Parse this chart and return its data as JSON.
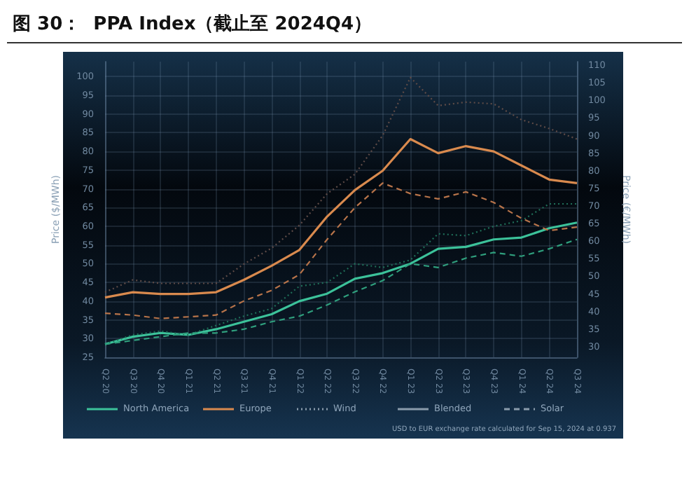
{
  "chart_data": {
    "type": "line",
    "title": "图 30：  PPA Index（截止至 2024Q4）",
    "ylabel": "Price ($/MWh)",
    "y2label": "Price (€/MWh)",
    "categories": [
      "Q2 20",
      "Q3 20",
      "Q4 20",
      "Q1 21",
      "Q2 21",
      "Q3 21",
      "Q4 21",
      "Q1 22",
      "Q2 22",
      "Q3 22",
      "Q4 22",
      "Q1 23",
      "Q2 23",
      "Q3 23",
      "Q4 23",
      "Q1 24",
      "Q2 24",
      "Q3 24"
    ],
    "series": [
      {
        "color": "#3cc29a",
        "line_style": "solid",
        "values": [
          28.5,
          30.5,
          31.5,
          31,
          32.5,
          34.5,
          36.5,
          40,
          42,
          46,
          47.5,
          50,
          54,
          54.5,
          56.5,
          57,
          59.5,
          61
        ]
      },
      {
        "color": "#1f6e58",
        "line_style": "dotted",
        "values": [
          28.5,
          31,
          32,
          31,
          33.5,
          36,
          38,
          44,
          45,
          50,
          49,
          51,
          58,
          57.5,
          60,
          61.5,
          66,
          66
        ]
      },
      {
        "color": "#2f9f7d",
        "line_style": "dashed",
        "values": [
          28.5,
          29.5,
          30.5,
          31.5,
          31.5,
          32.5,
          34.5,
          36,
          39,
          42.5,
          45.5,
          50,
          49,
          51.5,
          53,
          52,
          54,
          56.5
        ]
      },
      {
        "color": "#d98a4e",
        "line_style": "solid",
        "axis": "y2",
        "values": [
          44,
          45.5,
          45,
          45,
          45.5,
          49,
          53,
          57.5,
          67,
          74.5,
          80,
          89,
          85,
          87,
          85.5,
          81.5,
          77.5,
          76.5
        ]
      },
      {
        "color": "#5e4b47",
        "line_style": "dotted",
        "axis": "y2",
        "values": [
          45.5,
          49,
          48,
          48,
          48,
          53.5,
          58,
          64.5,
          73.5,
          79,
          90,
          106.5,
          98.5,
          99.5,
          99,
          94.5,
          92,
          89
        ]
      },
      {
        "color": "#b8744a",
        "line_style": "dashed",
        "axis": "y2",
        "values": [
          39.5,
          39,
          38,
          38.5,
          39,
          43,
          46,
          50.5,
          60.5,
          69.5,
          76.5,
          73.5,
          72,
          74,
          71,
          66.5,
          63,
          64
        ]
      }
    ],
    "ylim": [
      25,
      104
    ],
    "yticks": [
      25,
      30,
      35,
      40,
      45,
      50,
      55,
      60,
      65,
      70,
      75,
      80,
      85,
      90,
      95,
      100
    ],
    "y2lim": [
      27,
      111
    ],
    "y2ticks": [
      30,
      35,
      40,
      45,
      50,
      55,
      60,
      65,
      70,
      75,
      80,
      85,
      90,
      95,
      100,
      105,
      110
    ],
    "grid": true,
    "marker": "none",
    "annotations": [
      "North America",
      "Europe",
      "Wind",
      "Blended",
      "Solar",
      "USD to EUR exchange rate calculated for Sep 15, 2024 at 0.937"
    ]
  }
}
